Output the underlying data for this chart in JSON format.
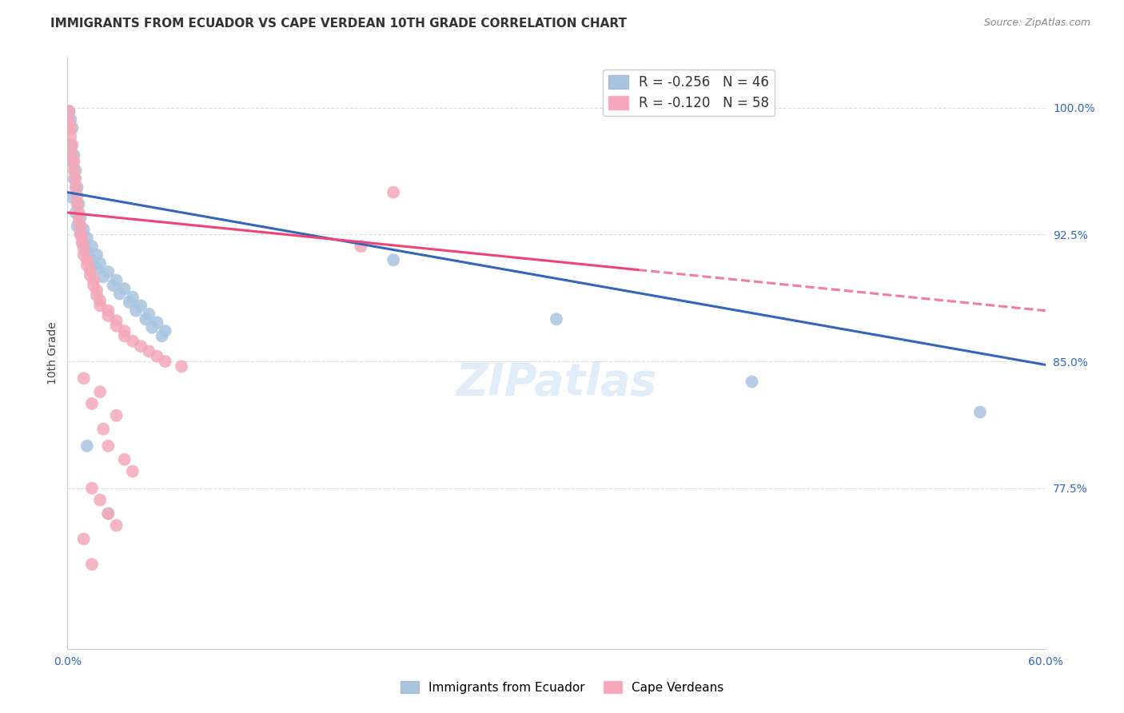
{
  "title": "IMMIGRANTS FROM ECUADOR VS CAPE VERDEAN 10TH GRADE CORRELATION CHART",
  "source": "Source: ZipAtlas.com",
  "ylabel": "10th Grade",
  "ytick_values": [
    1.0,
    0.925,
    0.85,
    0.775
  ],
  "xlim": [
    0.0,
    0.6
  ],
  "ylim": [
    0.68,
    1.03
  ],
  "watermark": "ZIPatlas",
  "legend_blue": "R = -0.256   N = 46",
  "legend_pink": "R = -0.120   N = 58",
  "blue_color": "#A8C4E0",
  "pink_color": "#F4A8B8",
  "blue_line_color": "#3366BB",
  "pink_line_color": "#EE4477",
  "blue_scatter": [
    [
      0.001,
      0.998
    ],
    [
      0.002,
      0.993
    ],
    [
      0.003,
      0.988
    ],
    [
      0.002,
      0.978
    ],
    [
      0.004,
      0.972
    ],
    [
      0.003,
      0.968
    ],
    [
      0.005,
      0.963
    ],
    [
      0.004,
      0.958
    ],
    [
      0.006,
      0.953
    ],
    [
      0.003,
      0.947
    ],
    [
      0.007,
      0.943
    ],
    [
      0.005,
      0.938
    ],
    [
      0.008,
      0.935
    ],
    [
      0.006,
      0.93
    ],
    [
      0.01,
      0.928
    ],
    [
      0.008,
      0.925
    ],
    [
      0.012,
      0.923
    ],
    [
      0.01,
      0.92
    ],
    [
      0.015,
      0.918
    ],
    [
      0.012,
      0.915
    ],
    [
      0.018,
      0.913
    ],
    [
      0.015,
      0.91
    ],
    [
      0.02,
      0.908
    ],
    [
      0.018,
      0.905
    ],
    [
      0.025,
      0.903
    ],
    [
      0.022,
      0.9
    ],
    [
      0.03,
      0.898
    ],
    [
      0.028,
      0.895
    ],
    [
      0.035,
      0.893
    ],
    [
      0.032,
      0.89
    ],
    [
      0.04,
      0.888
    ],
    [
      0.038,
      0.885
    ],
    [
      0.045,
      0.883
    ],
    [
      0.042,
      0.88
    ],
    [
      0.05,
      0.878
    ],
    [
      0.048,
      0.875
    ],
    [
      0.055,
      0.873
    ],
    [
      0.052,
      0.87
    ],
    [
      0.06,
      0.868
    ],
    [
      0.058,
      0.865
    ],
    [
      0.2,
      0.91
    ],
    [
      0.3,
      0.875
    ],
    [
      0.42,
      0.838
    ],
    [
      0.56,
      0.82
    ],
    [
      0.012,
      0.8
    ],
    [
      0.025,
      0.76
    ]
  ],
  "pink_scatter": [
    [
      0.001,
      0.998
    ],
    [
      0.001,
      0.992
    ],
    [
      0.002,
      0.988
    ],
    [
      0.002,
      0.983
    ],
    [
      0.003,
      0.978
    ],
    [
      0.003,
      0.972
    ],
    [
      0.004,
      0.968
    ],
    [
      0.004,
      0.963
    ],
    [
      0.005,
      0.958
    ],
    [
      0.005,
      0.953
    ],
    [
      0.006,
      0.948
    ],
    [
      0.006,
      0.943
    ],
    [
      0.007,
      0.938
    ],
    [
      0.007,
      0.933
    ],
    [
      0.008,
      0.93
    ],
    [
      0.008,
      0.926
    ],
    [
      0.009,
      0.923
    ],
    [
      0.009,
      0.92
    ],
    [
      0.01,
      0.917
    ],
    [
      0.01,
      0.913
    ],
    [
      0.012,
      0.91
    ],
    [
      0.012,
      0.907
    ],
    [
      0.014,
      0.904
    ],
    [
      0.014,
      0.901
    ],
    [
      0.016,
      0.898
    ],
    [
      0.016,
      0.895
    ],
    [
      0.018,
      0.892
    ],
    [
      0.018,
      0.889
    ],
    [
      0.02,
      0.886
    ],
    [
      0.02,
      0.883
    ],
    [
      0.025,
      0.88
    ],
    [
      0.025,
      0.877
    ],
    [
      0.03,
      0.874
    ],
    [
      0.03,
      0.871
    ],
    [
      0.035,
      0.868
    ],
    [
      0.035,
      0.865
    ],
    [
      0.04,
      0.862
    ],
    [
      0.045,
      0.859
    ],
    [
      0.05,
      0.856
    ],
    [
      0.055,
      0.853
    ],
    [
      0.06,
      0.85
    ],
    [
      0.07,
      0.847
    ],
    [
      0.2,
      0.95
    ],
    [
      0.18,
      0.918
    ],
    [
      0.01,
      0.84
    ],
    [
      0.02,
      0.832
    ],
    [
      0.015,
      0.825
    ],
    [
      0.03,
      0.818
    ],
    [
      0.022,
      0.81
    ],
    [
      0.025,
      0.8
    ],
    [
      0.035,
      0.792
    ],
    [
      0.04,
      0.785
    ],
    [
      0.015,
      0.775
    ],
    [
      0.02,
      0.768
    ],
    [
      0.025,
      0.76
    ],
    [
      0.03,
      0.753
    ],
    [
      0.01,
      0.745
    ],
    [
      0.015,
      0.73
    ]
  ],
  "blue_line": {
    "x0": 0.0,
    "x1": 0.6,
    "y0": 0.95,
    "y1": 0.848
  },
  "pink_line": {
    "x0": 0.0,
    "x1": 0.6,
    "y0": 0.938,
    "y1": 0.88
  },
  "pink_line_solid_end": 0.35,
  "grid_color": "#DDDDDD",
  "background_color": "#FFFFFF"
}
